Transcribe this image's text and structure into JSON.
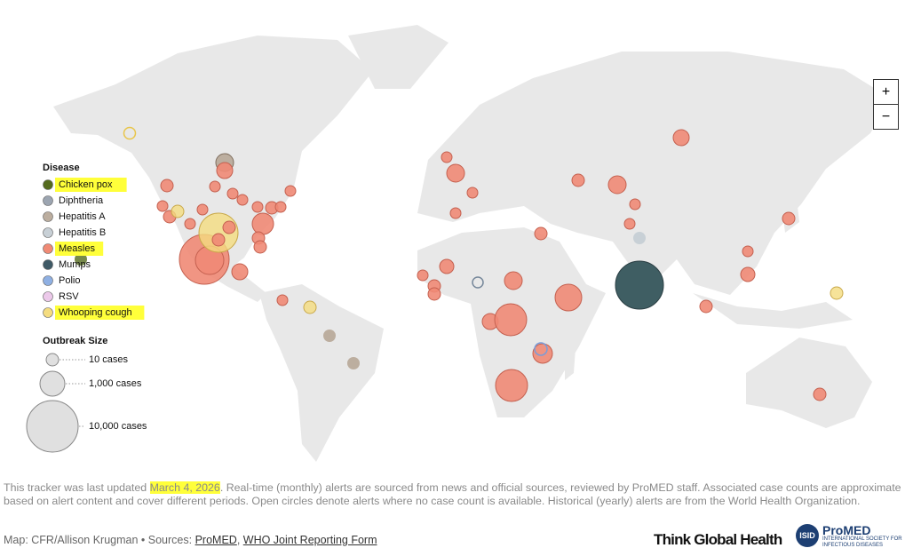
{
  "legend": {
    "title": "Disease",
    "items": [
      {
        "label": "Chicken pox",
        "color": "#556b1e",
        "highlight": true
      },
      {
        "label": "Diphtheria",
        "color": "#9ca5b1",
        "highlight": false
      },
      {
        "label": "Hepatitis A",
        "color": "#bcae9f",
        "highlight": false
      },
      {
        "label": "Hepatitis B",
        "color": "#c8d0d6",
        "highlight": false
      },
      {
        "label": "Measles",
        "color": "#f08a75",
        "highlight": true
      },
      {
        "label": "Mumps",
        "color": "#3f5a66",
        "highlight": false
      },
      {
        "label": "Polio",
        "color": "#8fb0e3",
        "highlight": false
      },
      {
        "label": "RSV",
        "color": "#ecc9ea",
        "highlight": false
      },
      {
        "label": "Whooping cough",
        "color": "#f4dc80",
        "highlight": true
      }
    ],
    "size_title": "Outbreak Size",
    "sizes": [
      "10 cases",
      "1,000 cases",
      "10,000 cases"
    ]
  },
  "zoom": {
    "in": "+",
    "out": "−"
  },
  "footnote": {
    "prefix": "This tracker was last updated ",
    "date": "March 4, 2026",
    "rest": ". Real-time (monthly) alerts are sourced from news and official sources, reviewed by ProMED staff. Associated case counts are approximate based on alert content and cover different periods. Open circles denote alerts where no case count is available. Historical (yearly) alerts are from the World Health Organization."
  },
  "credits": {
    "prefix": "Map: CFR/Allison Krugman • Sources: ",
    "sources": [
      "ProMED",
      "WHO Joint Reporting Form"
    ],
    "separator": ", "
  },
  "logos": {
    "tgh": "Think Global Health",
    "isid": "ISID",
    "promed": "ProMED",
    "promed_sub": "INTERNATIONAL SOCIETY FOR INFECTIOUS DISEASES"
  }
}
